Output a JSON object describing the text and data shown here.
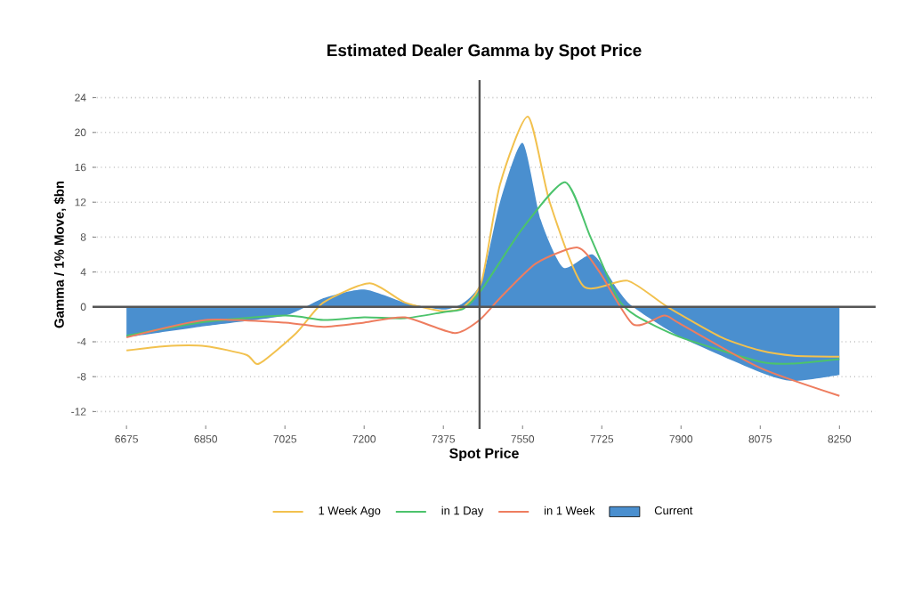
{
  "chart_data": {
    "type": "line",
    "title": "Estimated Dealer Gamma by Spot Price",
    "xlabel": "Spot Price",
    "ylabel": "Gamma / 1% Move, $bn",
    "xlim": [
      6600,
      8330
    ],
    "ylim": [
      -14,
      26
    ],
    "xticks": [
      6675,
      6850,
      7025,
      7200,
      7375,
      7550,
      7725,
      7900,
      8075,
      8250
    ],
    "yticks": [
      -12,
      -8,
      -4,
      0,
      4,
      8,
      12,
      16,
      20,
      24
    ],
    "grid": "y",
    "legend": "bottom",
    "ref_lines": [
      {
        "axis": "y",
        "value": 0,
        "color": "#555555"
      },
      {
        "axis": "x",
        "value": 7455,
        "color": "#555555"
      }
    ],
    "series": [
      {
        "name": "1 Week Ago",
        "color": "#f2c14e",
        "x": [
          6675,
          6760,
          6850,
          6940,
          6968,
          7050,
          7110,
          7212,
          7290,
          7375,
          7420,
          7460,
          7500,
          7562,
          7610,
          7684,
          7782,
          7870,
          7990,
          8075,
          8150,
          8250
        ],
        "values": [
          -5,
          -4.5,
          -4.5,
          -5.5,
          -6.5,
          -3,
          0.5,
          2.7,
          0.5,
          -0.5,
          0,
          3,
          14,
          21.8,
          12,
          2.4,
          3,
          0,
          -3.5,
          -5,
          -5.6,
          -5.7
        ]
      },
      {
        "name": "in 1 Day",
        "color": "#4cc36c",
        "x": [
          6675,
          6850,
          7025,
          7110,
          7200,
          7290,
          7375,
          7420,
          7460,
          7550,
          7644,
          7700,
          7760,
          7800,
          7900,
          8075,
          8150,
          8250
        ],
        "values": [
          -3.3,
          -1.7,
          -1,
          -1.5,
          -1.2,
          -1.3,
          -0.6,
          -0.2,
          2,
          9,
          14.3,
          8,
          1,
          -1,
          -3.5,
          -6.3,
          -6.5,
          -6
        ]
      },
      {
        "name": "in 1 Week",
        "color": "#ee7d5f",
        "x": [
          6675,
          6850,
          7025,
          7110,
          7200,
          7290,
          7400,
          7455,
          7500,
          7580,
          7672,
          7720,
          7794,
          7863,
          7900,
          8075,
          8250
        ],
        "values": [
          -3.5,
          -1.5,
          -1.8,
          -2.3,
          -1.8,
          -1.2,
          -3,
          -1.5,
          1,
          5,
          6.8,
          4,
          -2,
          -1,
          -2,
          -7,
          -10.2
        ]
      },
      {
        "name": "Current",
        "type": "area",
        "color": "#4a8fcf",
        "x": [
          6675,
          6850,
          7025,
          7110,
          7200,
          7290,
          7375,
          7420,
          7460,
          7500,
          7550,
          7590,
          7640,
          7705,
          7760,
          7794,
          7900,
          8075,
          8148,
          8250
        ],
        "values": [
          -3.5,
          -2.2,
          -1,
          1,
          2,
          0.5,
          -0.3,
          0.5,
          3,
          12,
          18.8,
          10,
          4.5,
          6,
          2,
          0,
          -3.5,
          -7.5,
          -8.5,
          -7.8
        ]
      }
    ]
  }
}
